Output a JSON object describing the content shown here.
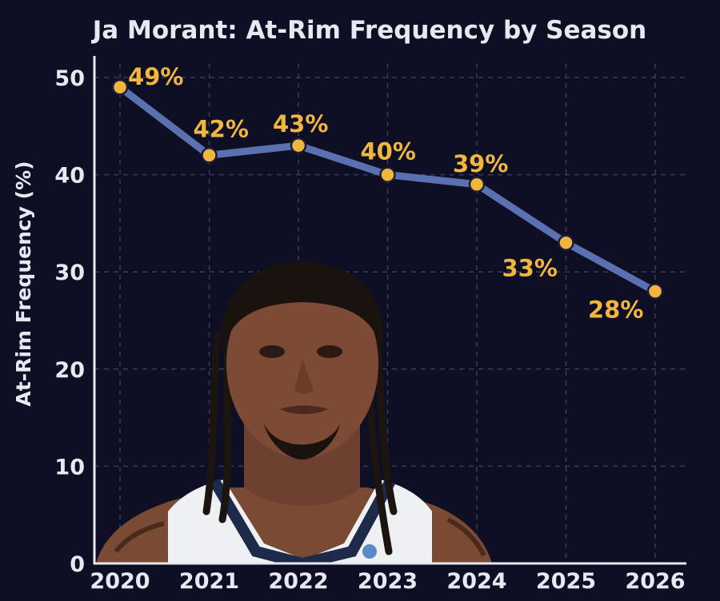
{
  "chart_data": {
    "type": "line",
    "title": "Ja Morant: At-Rim Frequency by Season",
    "xlabel": "",
    "ylabel": "At-Rim Frequency (%)",
    "x": [
      "2020",
      "2021",
      "2022",
      "2023",
      "2024",
      "2025",
      "2026"
    ],
    "series": [
      {
        "values": [
          49,
          42,
          43,
          40,
          39,
          33,
          28
        ],
        "labels": [
          "49%",
          "42%",
          "43%",
          "40%",
          "39%",
          "33%",
          "28%"
        ]
      }
    ],
    "ylim": [
      0,
      52
    ],
    "yticks": [
      "0",
      "10",
      "20",
      "30",
      "40",
      "50"
    ],
    "grid": true,
    "legend": "none"
  },
  "colors": {
    "background": "#0e0f24",
    "line": "#5a70b0",
    "marker": "#f0b73c",
    "label": "#f0b73c",
    "text": "#e8e8f0",
    "grid": "#3a3c55",
    "axis": "#e8e8f0"
  },
  "image": {
    "description": "player-headshot"
  }
}
